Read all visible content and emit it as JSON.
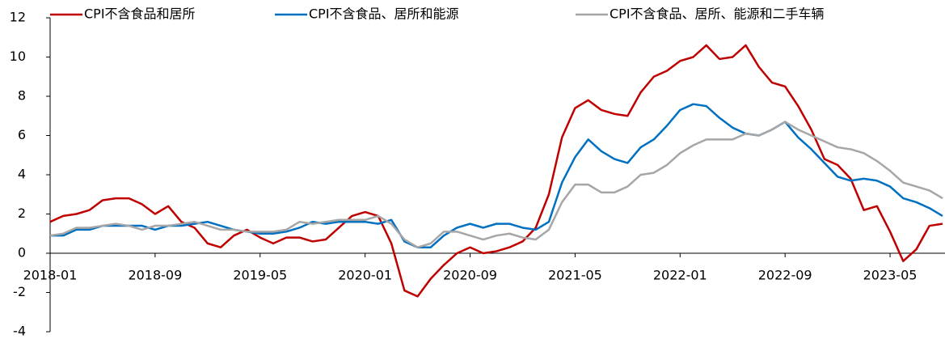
{
  "chart_data": {
    "type": "line",
    "categories": [
      "2018-01",
      null,
      null,
      null,
      null,
      null,
      null,
      null,
      "2018-09",
      null,
      null,
      null,
      null,
      null,
      null,
      null,
      "2019-05",
      null,
      null,
      null,
      null,
      null,
      null,
      null,
      "2020-01",
      null,
      null,
      null,
      null,
      null,
      null,
      null,
      "2020-09",
      null,
      null,
      null,
      null,
      null,
      null,
      null,
      "2021-05",
      null,
      null,
      null,
      null,
      null,
      null,
      null,
      "2022-01",
      null,
      null,
      null,
      null,
      null,
      null,
      null,
      "2022-09",
      null,
      null,
      null,
      null,
      null,
      null,
      null,
      "2023-05",
      null,
      null,
      null,
      null
    ],
    "series": [
      {
        "name": "CPI不含食品和居所",
        "color": "#c00000",
        "values": [
          1.6,
          1.9,
          2.0,
          2.2,
          2.7,
          2.8,
          2.8,
          2.5,
          2.0,
          2.4,
          1.6,
          1.3,
          0.5,
          0.3,
          0.9,
          1.2,
          0.8,
          0.5,
          0.8,
          0.8,
          0.6,
          0.7,
          1.3,
          1.9,
          2.1,
          1.9,
          0.5,
          -1.9,
          -2.2,
          -1.3,
          -0.6,
          0.0,
          0.3,
          0.0,
          0.1,
          0.3,
          0.6,
          1.3,
          3.0,
          5.9,
          7.4,
          7.8,
          7.3,
          7.1,
          7.0,
          8.2,
          9.0,
          9.3,
          9.8,
          10.0,
          10.6,
          9.9,
          10.0,
          10.6,
          9.5,
          8.7,
          8.5,
          7.5,
          6.3,
          4.8,
          4.5,
          3.8,
          2.2,
          2.4,
          1.1,
          -0.4,
          0.2,
          1.4,
          1.5
        ]
      },
      {
        "name": "CPI不含食品、居所和能源",
        "color": "#0070c0",
        "values": [
          0.9,
          0.9,
          1.2,
          1.2,
          1.4,
          1.4,
          1.4,
          1.4,
          1.2,
          1.4,
          1.4,
          1.5,
          1.6,
          1.4,
          1.2,
          1.1,
          1.0,
          1.0,
          1.1,
          1.3,
          1.6,
          1.5,
          1.6,
          1.6,
          1.6,
          1.5,
          1.7,
          0.6,
          0.3,
          0.3,
          0.9,
          1.3,
          1.5,
          1.3,
          1.5,
          1.5,
          1.3,
          1.2,
          1.6,
          3.6,
          4.9,
          5.8,
          5.2,
          4.8,
          4.6,
          5.4,
          5.8,
          6.5,
          7.3,
          7.6,
          7.5,
          6.9,
          6.4,
          6.1,
          6.0,
          6.3,
          6.7,
          5.9,
          5.3,
          4.6,
          3.9,
          3.7,
          3.8,
          3.7,
          3.4,
          2.8,
          2.6,
          2.3,
          1.9
        ]
      },
      {
        "name": "CPI不含食品、居所、能源和二手车辆",
        "color": "#a6a6a6",
        "values": [
          0.9,
          1.0,
          1.3,
          1.3,
          1.4,
          1.5,
          1.4,
          1.2,
          1.4,
          1.4,
          1.5,
          1.6,
          1.4,
          1.2,
          1.2,
          1.1,
          1.1,
          1.1,
          1.2,
          1.6,
          1.5,
          1.6,
          1.7,
          1.7,
          1.7,
          1.9,
          1.5,
          0.7,
          0.3,
          0.5,
          1.1,
          1.1,
          0.9,
          0.7,
          0.9,
          1.0,
          0.8,
          0.7,
          1.2,
          2.6,
          3.5,
          3.5,
          3.1,
          3.1,
          3.4,
          4.0,
          4.1,
          4.5,
          5.1,
          5.5,
          5.8,
          5.8,
          5.8,
          6.1,
          6.0,
          6.3,
          6.7,
          6.3,
          6.0,
          5.7,
          5.4,
          5.3,
          5.1,
          4.7,
          4.2,
          3.6,
          3.4,
          3.2,
          2.8
        ]
      }
    ],
    "ylim": [
      -4,
      12
    ],
    "yticks": [
      -4,
      -2,
      0,
      2,
      4,
      6,
      8,
      10,
      12
    ],
    "grid": false
  }
}
